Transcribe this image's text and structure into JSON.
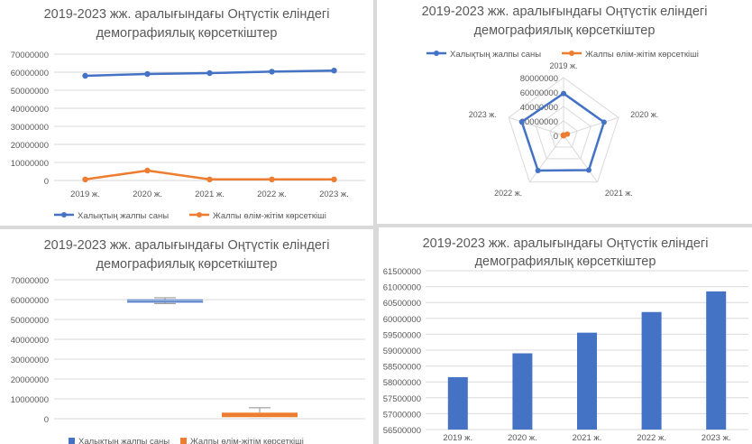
{
  "colors": {
    "population": "#4472C4",
    "mortality": "#ED7D31",
    "grid": "#d9d9d9",
    "text": "#595959"
  },
  "chart_data": [
    {
      "type": "line",
      "title_line1": "2019-2023 жж. аралығындағы Оңтүстік еліндегі",
      "title_line2": "демографиялық көрсеткіштер",
      "categories": [
        "2019 ж.",
        "2020 ж.",
        "2021 ж.",
        "2022 ж.",
        "2023 ж."
      ],
      "series": [
        {
          "name": "Халықтың жалпы саны",
          "values": [
            58000000,
            59000000,
            59500000,
            60300000,
            60900000
          ]
        },
        {
          "name": "Жалпы өлім-жітім көрсеткіші",
          "values": [
            600000,
            5500000,
            600000,
            600000,
            600000
          ]
        }
      ],
      "ylim": [
        0,
        70000000
      ],
      "yticks": [
        "0",
        "10000000",
        "20000000",
        "30000000",
        "40000000",
        "50000000",
        "60000000",
        "70000000"
      ],
      "legend": "bottom",
      "grid": true
    },
    {
      "type": "radar",
      "title_line1": "2019-2023 жж. аралығындағы Оңтүстік еліндегі",
      "title_line2": "демографиялық көрсеткіштер",
      "categories": [
        "2019 ж.",
        "2020 ж.",
        "2021 ж.",
        "2022 ж.",
        "2023 ж."
      ],
      "series": [
        {
          "name": "Халықтың жалпы саны",
          "values": [
            58000000,
            59000000,
            59500000,
            60300000,
            60900000
          ]
        },
        {
          "name": "Жалпы өлім-жітім көрсеткіші",
          "values": [
            600000,
            5500000,
            600000,
            600000,
            600000
          ]
        }
      ],
      "ylim": [
        0,
        80000000
      ],
      "yticks": [
        "0",
        "20000000",
        "40000000",
        "60000000",
        "80000000"
      ],
      "legend": "top",
      "grid": true
    },
    {
      "type": "box",
      "title_line1": "2019-2023 жж. аралығындағы Оңтүстік еліндегі",
      "title_line2": "демографиялық көрсеткіштер",
      "series": [
        {
          "name": "Халықтың жалпы саны",
          "min": 58000000,
          "q1": 58500000,
          "median": 59500000,
          "q3": 60100000,
          "max": 60900000
        },
        {
          "name": "Жалпы өлім-жітім көрсеткіші",
          "min": 600000,
          "q1": 600000,
          "median": 600000,
          "q3": 3050000,
          "max": 5500000
        }
      ],
      "ylim": [
        0,
        70000000
      ],
      "yticks": [
        "0",
        "10000000",
        "20000000",
        "30000000",
        "40000000",
        "50000000",
        "60000000",
        "70000000"
      ],
      "legend": "bottom",
      "grid": true
    },
    {
      "type": "bar",
      "title_line1": "2019-2023 жж. аралығындағы Оңтүстік еліндегі",
      "title_line2": "демографиялық көрсеткіштер",
      "categories": [
        "2019 ж.",
        "2020 ж.",
        "2021 ж.",
        "2022 ж.",
        "2023 ж."
      ],
      "values": [
        58150000,
        58900000,
        59550000,
        60200000,
        60850000
      ],
      "ylim": [
        56500000,
        61500000
      ],
      "yticks": [
        "56500000",
        "57000000",
        "57500000",
        "58000000",
        "58500000",
        "59000000",
        "59500000",
        "60000000",
        "60500000",
        "61000000",
        "61500000"
      ],
      "grid": true
    }
  ]
}
